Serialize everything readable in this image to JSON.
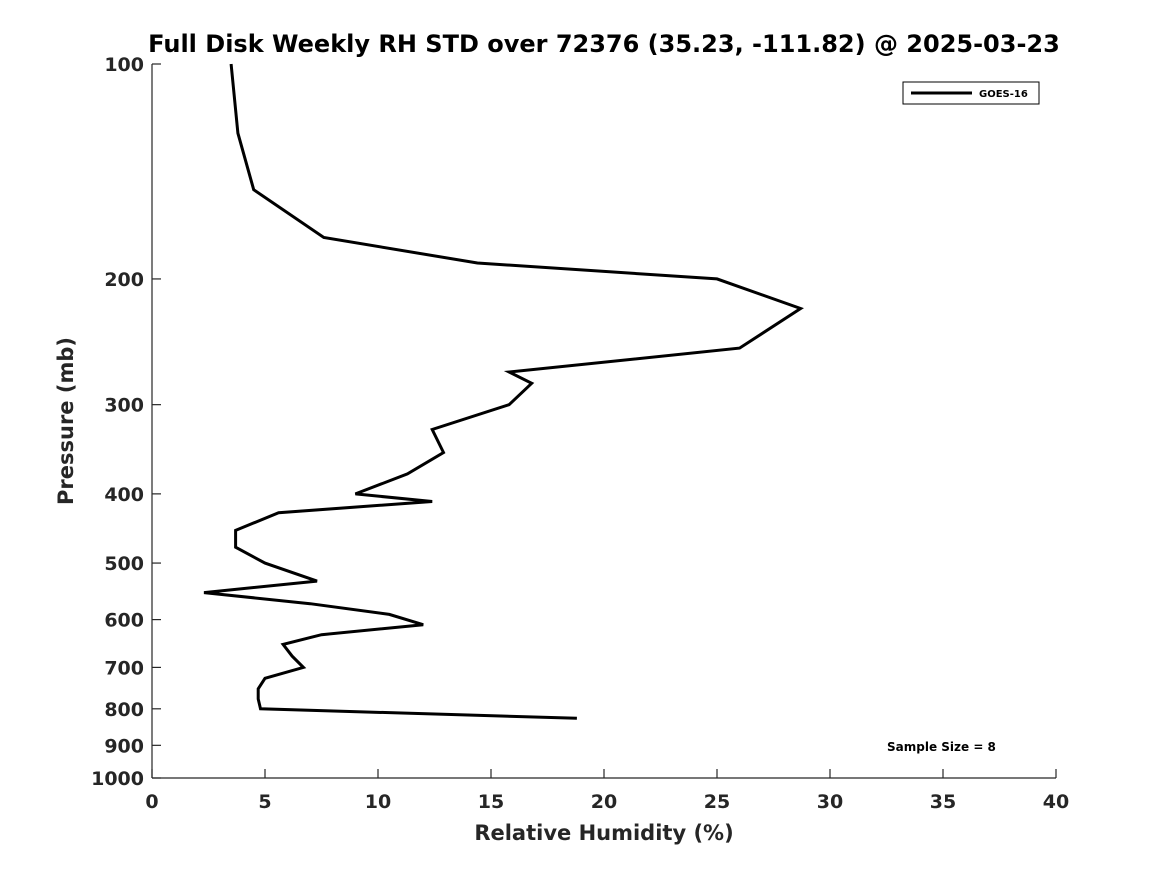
{
  "chart_data": {
    "type": "line",
    "title": "Full Disk Weekly RH STD over 72376 (35.23, -111.82) @ 2025-03-23",
    "xlabel": "Relative Humidity (%)",
    "ylabel": "Pressure (mb)",
    "xlim": [
      0,
      40
    ],
    "ylim": [
      100,
      1000
    ],
    "yscale": "log",
    "y_reversed": true,
    "x_ticks": [
      0,
      5,
      10,
      15,
      20,
      25,
      30,
      35,
      40
    ],
    "x_tick_labels": [
      "0",
      "5",
      "10",
      "15",
      "20",
      "25",
      "30",
      "35",
      "40"
    ],
    "y_ticks": [
      100,
      200,
      300,
      400,
      500,
      600,
      700,
      800,
      900,
      1000
    ],
    "y_tick_labels": [
      "100",
      "200",
      "300",
      "400",
      "500",
      "600",
      "700",
      "800",
      "900",
      "1000"
    ],
    "grid": false,
    "legend_position": "top-right",
    "series": [
      {
        "name": "GOES-16",
        "color": "#000000",
        "points": [
          [
            3.5,
            100
          ],
          [
            3.8,
            125
          ],
          [
            4.5,
            150
          ],
          [
            7.6,
            175
          ],
          [
            14.4,
            190
          ],
          [
            25.0,
            200
          ],
          [
            28.7,
            220
          ],
          [
            26.0,
            250
          ],
          [
            15.8,
            270
          ],
          [
            16.8,
            280
          ],
          [
            15.8,
            300
          ],
          [
            12.4,
            325
          ],
          [
            12.9,
            350
          ],
          [
            11.3,
            375
          ],
          [
            9.0,
            400
          ],
          [
            12.4,
            410
          ],
          [
            5.6,
            425
          ],
          [
            3.7,
            450
          ],
          [
            3.7,
            475
          ],
          [
            5.0,
            500
          ],
          [
            7.3,
            530
          ],
          [
            2.3,
            550
          ],
          [
            7.0,
            570
          ],
          [
            10.5,
            590
          ],
          [
            12.0,
            610
          ],
          [
            7.5,
            630
          ],
          [
            5.8,
            650
          ],
          [
            6.2,
            675
          ],
          [
            6.7,
            700
          ],
          [
            5.0,
            725
          ],
          [
            4.7,
            750
          ],
          [
            4.7,
            775
          ],
          [
            4.8,
            800
          ],
          [
            18.8,
            825
          ]
        ]
      }
    ],
    "annotations": [
      {
        "text": "Sample Size = 8"
      }
    ]
  }
}
